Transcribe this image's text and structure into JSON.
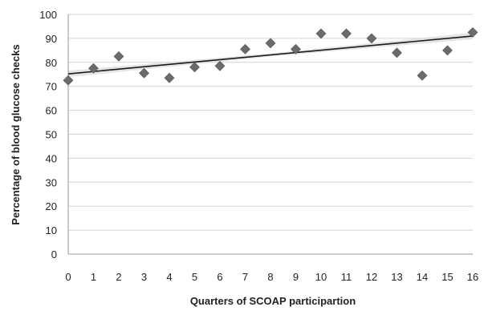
{
  "chart_data": {
    "type": "scatter",
    "xlabel": "Quarters of SCOAP participartion",
    "ylabel": "Percentage of blood glucose checks",
    "xlim": [
      0,
      16
    ],
    "ylim": [
      0,
      100
    ],
    "x_ticks": [
      "0",
      "1",
      "2",
      "3",
      "4",
      "5",
      "6",
      "7",
      "8",
      "9",
      "10",
      "11",
      "12",
      "13",
      "14",
      "15",
      "16"
    ],
    "y_ticks": [
      "0",
      "10",
      "20",
      "30",
      "40",
      "50",
      "60",
      "70",
      "80",
      "90",
      "100"
    ],
    "grid": true,
    "legend": "none",
    "marker": "diamond",
    "colors": {
      "marker": "#6b6b6b",
      "trendline": "#1a1a1a",
      "confidence_band": "#d9d9d9",
      "gridline": "#d4d4d4",
      "axis": "#9a9a9a"
    },
    "series": [
      {
        "x": [
          0,
          1,
          2,
          3,
          4,
          5,
          6,
          7,
          8,
          9,
          10,
          11,
          12,
          13,
          14,
          15,
          16
        ],
        "values": [
          72.5,
          77.5,
          82.5,
          75.5,
          73.5,
          78,
          78.5,
          85.5,
          88,
          85.5,
          92,
          92,
          90,
          84,
          74.5,
          85,
          92.5
        ]
      }
    ],
    "trendline": {
      "type": "linear",
      "start": [
        0,
        75.2
      ],
      "end": [
        16,
        91
      ]
    }
  }
}
